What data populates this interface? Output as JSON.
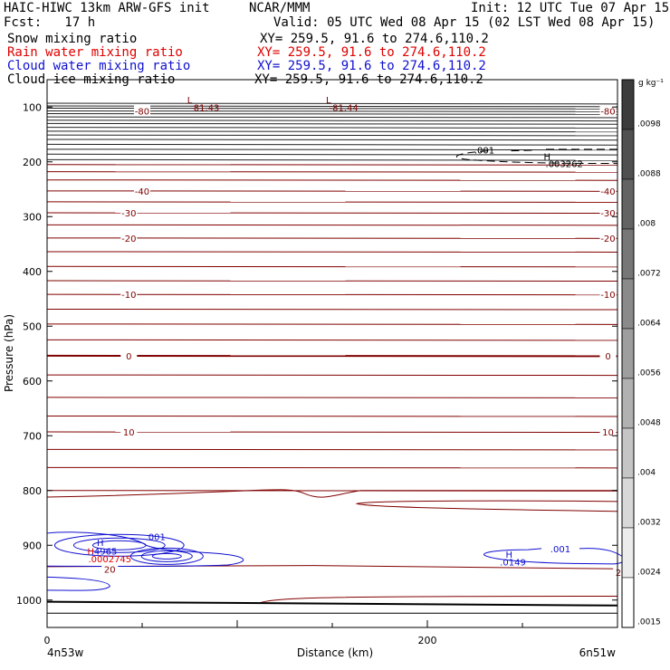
{
  "header": {
    "title_left": "HAIC-HIWC 13km ARW-GFS init",
    "title_center": "NCAR/MMM",
    "init": "Init: 12 UTC Tue 07 Apr 15",
    "fcst": "Fcst:   17 h",
    "valid": "Valid: 05 UTC Wed 08 Apr 15 (02 LST Wed 08 Apr 15)",
    "fields": [
      {
        "name": "Snow mixing ratio",
        "xy": "XY= 259.5, 91.6 to 274.6,110.2",
        "color": "#000000"
      },
      {
        "name": "Rain water mixing ratio",
        "xy": "XY= 259.5, 91.6 to 274.6,110.2",
        "color": "#e00000"
      },
      {
        "name": "Cloud water mixing ratio",
        "xy": "XY= 259.5, 91.6 to 274.6,110.2",
        "color": "#1010d0"
      },
      {
        "name": "Cloud ice mixing ratio",
        "xy": "XY= 259.5, 91.6 to 274.6,110.2",
        "color": "#000000"
      }
    ]
  },
  "chart_data": {
    "type": "contour",
    "xlabel": "Distance (km)",
    "ylabel": "Pressure (hPa)",
    "x_ticks": [
      "0",
      "200"
    ],
    "x_endpoints": [
      "4n53w",
      "6n51w"
    ],
    "y_ticks": [
      "100",
      "200",
      "300",
      "400",
      "500",
      "600",
      "700",
      "800",
      "900",
      "1000"
    ],
    "xlim": [
      0,
      300
    ],
    "ylim": [
      1050,
      50
    ],
    "colorbar": {
      "unit": "g kg⁻¹",
      "ticks": [
        ".0098",
        ".0088",
        ".008",
        ".0072",
        ".0064",
        ".0056",
        ".0048",
        ".004",
        ".0032",
        ".0024",
        ".0015"
      ]
    },
    "temperature_labels": [
      {
        "text": "-80",
        "x": 50,
        "p": 107
      },
      {
        "text": "-80",
        "x": 295,
        "p": 107
      },
      {
        "text": "-40",
        "x": 50,
        "p": 253
      },
      {
        "text": "-40",
        "x": 295,
        "p": 253
      },
      {
        "text": "-30",
        "x": 43,
        "p": 293
      },
      {
        "text": "-30",
        "x": 295,
        "p": 293
      },
      {
        "text": "-20",
        "x": 43,
        "p": 339
      },
      {
        "text": "-20",
        "x": 295,
        "p": 339
      },
      {
        "text": "-10",
        "x": 43,
        "p": 442
      },
      {
        "text": "-10",
        "x": 295,
        "p": 442
      },
      {
        "text": "0",
        "x": 43,
        "p": 554
      },
      {
        "text": "0",
        "x": 295,
        "p": 554
      },
      {
        "text": "10",
        "x": 43,
        "p": 693
      },
      {
        "text": "10",
        "x": 295,
        "p": 693
      },
      {
        "text": "20",
        "x": 33,
        "p": 943
      },
      {
        "text": "20",
        "x": 302,
        "p": 949
      }
    ],
    "extrema_labels": [
      {
        "text": "L",
        "x": 75,
        "p": 86,
        "color": "#800000"
      },
      {
        "text": "-81.43",
        "x": 83,
        "p": 100,
        "color": "#800000"
      },
      {
        "text": "L",
        "x": 148,
        "p": 86,
        "color": "#800000"
      },
      {
        "text": "-81.44",
        "x": 156,
        "p": 100,
        "color": "#800000"
      },
      {
        "text": ".001",
        "x": 230,
        "p": 178,
        "color": "#000000"
      },
      {
        "text": "H",
        "x": 263,
        "p": 190,
        "color": "#000000"
      },
      {
        "text": ".003262",
        "x": 272,
        "p": 203,
        "color": "#000000"
      },
      {
        "text": "H",
        "x": 28,
        "p": 895,
        "color": "#1010d0"
      },
      {
        "text": "H",
        "x": 23,
        "p": 910,
        "color": "#e00000"
      },
      {
        "text": ".4965",
        "x": 30,
        "p": 910,
        "color": "#1010d0"
      },
      {
        "text": ".0002745",
        "x": 33,
        "p": 924,
        "color": "#e00000"
      },
      {
        "text": ".001",
        "x": 57,
        "p": 884,
        "color": "#1010d0"
      },
      {
        "text": "H",
        "x": 243,
        "p": 916,
        "color": "#1010d0"
      },
      {
        "text": ".0149",
        "x": 245,
        "p": 930,
        "color": "#1010d0"
      },
      {
        "text": ".001",
        "x": 270,
        "p": 906,
        "color": "#1010d0"
      }
    ]
  }
}
